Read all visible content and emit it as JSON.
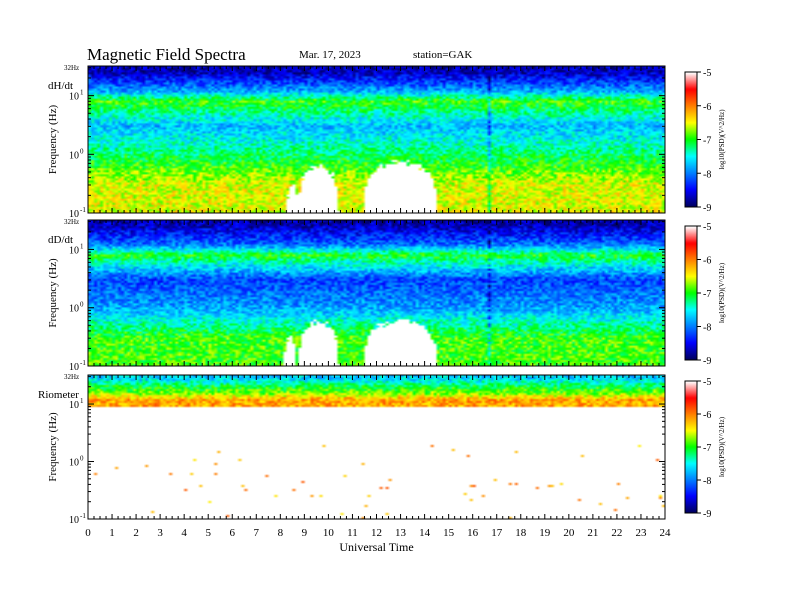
{
  "header": {
    "title": "Magnetic  Field  Spectra",
    "date": "Mar. 17, 2023",
    "station": "station=GAK"
  },
  "colors": {
    "colormap": [
      "#ffffff",
      "#ff0000",
      "#ff8000",
      "#ffff00",
      "#00ff00",
      "#00ffff",
      "#0080ff",
      "#0000ff",
      "#000060"
    ]
  },
  "chart_data": [
    {
      "type": "heatmap",
      "panel_label": "dH/dt",
      "ylabel": "Frequency  (Hz)",
      "xlabel": "",
      "y_scale": "log",
      "ylim": [
        0.1,
        32
      ],
      "y_ticks": [
        {
          "value": 0.1,
          "label": "10"
        },
        {
          "value": 1,
          "label": "10"
        },
        {
          "value": 10,
          "label": "10"
        }
      ],
      "y_tick_exponents": [
        "-1",
        "0",
        "1"
      ],
      "y_top_label": "32Hz",
      "xlim": [
        0,
        24
      ],
      "colorbar": {
        "label": "log10(PSD)(V^2/Hz)",
        "ticks": [
          "-5",
          "-6",
          "-7",
          "-8",
          "-9"
        ],
        "range": [
          -9,
          -5
        ]
      },
      "white_regions": [
        {
          "x_center": 9.6,
          "x_halfwidth": 0.85,
          "f_top": 0.62
        },
        {
          "x_center": 13.0,
          "x_halfwidth": 1.55,
          "f_top": 0.75
        },
        {
          "x_center": 8.5,
          "x_halfwidth": 0.25,
          "f_top": 0.3
        }
      ],
      "bands": [
        {
          "freq": 25,
          "log_psd": -8.7
        },
        {
          "freq": 12,
          "log_psd": -7.8
        },
        {
          "freq": 8,
          "log_psd": -6.8
        },
        {
          "freq": 3,
          "log_psd": -7.7
        },
        {
          "freq": 1,
          "log_psd": -7.1
        },
        {
          "freq": 0.3,
          "log_psd": -6.4
        }
      ],
      "spike_times": [
        16.7
      ]
    },
    {
      "type": "heatmap",
      "panel_label": "dD/dt",
      "ylabel": "Frequency  (Hz)",
      "xlabel": "",
      "y_scale": "log",
      "ylim": [
        0.1,
        32
      ],
      "y_ticks": [
        {
          "value": 0.1,
          "label": "10"
        },
        {
          "value": 1,
          "label": "10"
        },
        {
          "value": 10,
          "label": "10"
        }
      ],
      "y_tick_exponents": [
        "-1",
        "0",
        "1"
      ],
      "y_top_label": "32Hz",
      "xlim": [
        0,
        24
      ],
      "colorbar": {
        "label": "log10(PSD)(V^2/Hz)",
        "ticks": [
          "-5",
          "-6",
          "-7",
          "-8",
          "-9"
        ],
        "range": [
          -9,
          -5
        ]
      },
      "white_regions": [
        {
          "x_center": 9.6,
          "x_halfwidth": 0.85,
          "f_top": 0.55
        },
        {
          "x_center": 13.0,
          "x_halfwidth": 1.55,
          "f_top": 0.6
        },
        {
          "x_center": 8.4,
          "x_halfwidth": 0.3,
          "f_top": 0.3
        }
      ],
      "bands": [
        {
          "freq": 25,
          "log_psd": -8.7
        },
        {
          "freq": 12,
          "log_psd": -8.0
        },
        {
          "freq": 8,
          "log_psd": -6.9
        },
        {
          "freq": 3,
          "log_psd": -8.2
        },
        {
          "freq": 1,
          "log_psd": -7.8
        },
        {
          "freq": 0.3,
          "log_psd": -6.8
        }
      ],
      "spike_times": [
        16.7
      ]
    },
    {
      "type": "heatmap",
      "panel_label": "Riometer",
      "ylabel": "Frequency  (Hz)",
      "xlabel": "Universal  Time",
      "y_scale": "log",
      "ylim": [
        0.1,
        32
      ],
      "y_ticks": [
        {
          "value": 0.1,
          "label": "10"
        },
        {
          "value": 1,
          "label": "10"
        },
        {
          "value": 10,
          "label": "10"
        }
      ],
      "y_tick_exponents": [
        "-1",
        "0",
        "1"
      ],
      "y_top_label": "32Hz",
      "xlim": [
        0,
        24
      ],
      "x_ticks": [
        "0",
        "1",
        "2",
        "3",
        "4",
        "5",
        "6",
        "7",
        "8",
        "9",
        "10",
        "11",
        "12",
        "13",
        "14",
        "15",
        "16",
        "17",
        "18",
        "19",
        "20",
        "21",
        "22",
        "23",
        "24"
      ],
      "colorbar": {
        "label": "log10(PSD)(V^2/Hz)",
        "ticks": [
          "-5",
          "-6",
          "-7",
          "-8",
          "-9"
        ],
        "range": [
          -9,
          -5
        ]
      },
      "bands": [
        {
          "freq": 28,
          "log_psd": -7.6
        },
        {
          "freq": 20,
          "log_psd": -7.0
        },
        {
          "freq": 15,
          "log_psd": -6.6
        },
        {
          "freq": 12,
          "log_psd": -6.0
        }
      ]
    }
  ]
}
